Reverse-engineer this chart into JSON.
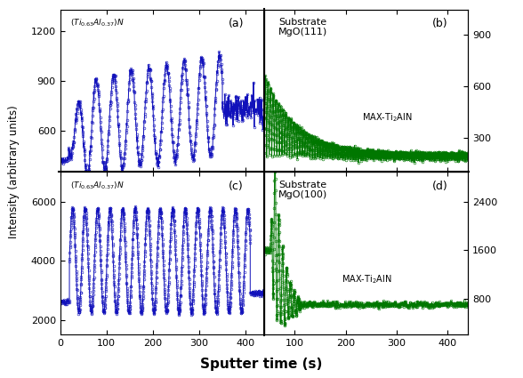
{
  "blue_color": "#1111BB",
  "green_color": "#007700",
  "xlabel": "Sputter time (s)",
  "ylabel": "Intensity (arbitrary units)",
  "panel_a": {
    "label": "(Ti$_{0.63}$Al$_{0.37}$)N",
    "panel_letter": "(a)",
    "xmin": 0,
    "xmax": 440,
    "ymin": 350,
    "ymax": 1330,
    "yticks": [
      600,
      900,
      1200
    ],
    "xticks": [
      0,
      100,
      200,
      300,
      400
    ]
  },
  "panel_b": {
    "label": "Substrate\nMgO(111)",
    "panel_letter": "(b)",
    "annotation": "MAX-Ti$_2$AlN",
    "xmin": 40,
    "xmax": 440,
    "ymin": 100,
    "ymax": 1050,
    "yticks_right": [
      300,
      600,
      900
    ],
    "xticks": [
      100,
      200,
      300,
      400
    ]
  },
  "panel_c": {
    "label": "(Ti$_{0.63}$Al$_{0.37}$)N",
    "panel_letter": "(c)",
    "xmin": 0,
    "xmax": 440,
    "ymin": 1500,
    "ymax": 7000,
    "yticks": [
      2000,
      4000,
      6000
    ],
    "xticks": [
      0,
      100,
      200,
      300,
      400
    ]
  },
  "panel_d": {
    "label": "Substrate\nMgO(100)",
    "panel_letter": "(d)",
    "annotation": "MAX-Ti$_2$AlN",
    "xmin": 40,
    "xmax": 440,
    "ymin": 200,
    "ymax": 2900,
    "yticks_right": [
      800,
      1600,
      2400
    ],
    "xticks": [
      100,
      200,
      300,
      400
    ]
  }
}
